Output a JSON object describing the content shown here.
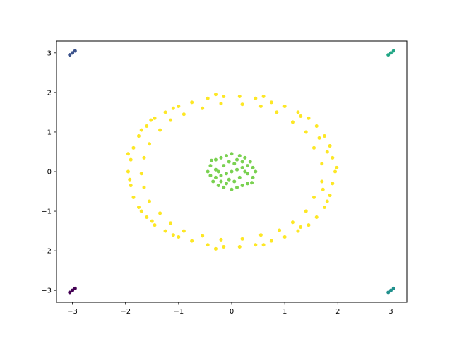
{
  "chart_data": {
    "type": "scatter",
    "title": "",
    "xlabel": "",
    "ylabel": "",
    "xlim": [
      -3.3,
      3.3
    ],
    "ylim": [
      -3.3,
      3.3
    ],
    "grid": false,
    "legend": "none",
    "x_ticks": [
      -3,
      -2,
      -1,
      0,
      1,
      2,
      3
    ],
    "y_ticks": [
      -3,
      -2,
      -1,
      0,
      1,
      2,
      3
    ],
    "x_tick_labels": [
      "−3",
      "−2",
      "−1",
      "0",
      "1",
      "2",
      "3"
    ],
    "y_tick_labels": [
      "−3",
      "−2",
      "−1",
      "0",
      "1",
      "2",
      "3"
    ],
    "series": [
      {
        "color": "#440154",
        "points": [
          [
            -3.05,
            -3.05
          ],
          [
            -3.0,
            -3.0
          ],
          [
            -2.95,
            -2.95
          ]
        ]
      },
      {
        "color": "#3b528b",
        "points": [
          [
            -3.05,
            2.95
          ],
          [
            -3.0,
            3.0
          ],
          [
            -2.95,
            3.05
          ]
        ]
      },
      {
        "color": "#21908d",
        "points": [
          [
            2.95,
            -3.05
          ],
          [
            3.0,
            -3.0
          ],
          [
            3.05,
            -2.95
          ]
        ]
      },
      {
        "color": "#21a685",
        "points": [
          [
            2.95,
            2.95
          ],
          [
            3.0,
            3.0
          ],
          [
            3.05,
            3.05
          ]
        ]
      },
      {
        "color": "#7ad151",
        "points": [
          [
            0.0,
            0.0
          ],
          [
            0.1,
            0.05
          ],
          [
            -0.1,
            -0.05
          ],
          [
            0.2,
            0.1
          ],
          [
            -0.2,
            -0.1
          ],
          [
            0.3,
            0.15
          ],
          [
            -0.3,
            -0.15
          ],
          [
            0.4,
            0.1
          ],
          [
            -0.4,
            -0.1
          ],
          [
            0.45,
            0.0
          ],
          [
            -0.45,
            0.0
          ],
          [
            0.4,
            -0.15
          ],
          [
            -0.4,
            0.15
          ],
          [
            0.3,
            -0.3
          ],
          [
            -0.3,
            0.3
          ],
          [
            0.2,
            -0.35
          ],
          [
            -0.2,
            0.35
          ],
          [
            0.1,
            -0.4
          ],
          [
            -0.1,
            0.4
          ],
          [
            0.0,
            -0.45
          ],
          [
            0.0,
            0.45
          ],
          [
            0.15,
            0.4
          ],
          [
            -0.15,
            -0.4
          ],
          [
            0.25,
            0.35
          ],
          [
            -0.25,
            -0.35
          ],
          [
            0.35,
            0.25
          ],
          [
            -0.35,
            -0.25
          ],
          [
            0.05,
            0.2
          ],
          [
            -0.05,
            -0.2
          ],
          [
            0.15,
            -0.15
          ],
          [
            -0.15,
            0.15
          ],
          [
            0.25,
            0.0
          ],
          [
            -0.25,
            0.0
          ],
          [
            0.1,
            0.3
          ],
          [
            -0.1,
            -0.3
          ],
          [
            0.3,
            -0.05
          ],
          [
            -0.3,
            0.05
          ],
          [
            0.2,
            0.25
          ],
          [
            -0.2,
            -0.25
          ],
          [
            0.38,
            -0.28
          ],
          [
            -0.38,
            0.28
          ],
          [
            0.05,
            -0.25
          ],
          [
            -0.05,
            0.25
          ]
        ]
      },
      {
        "color": "#fde725",
        "points": [
          [
            1.95,
            0.0
          ],
          [
            1.9,
            0.35
          ],
          [
            1.85,
            0.65
          ],
          [
            1.75,
            0.9
          ],
          [
            1.6,
            1.15
          ],
          [
            1.45,
            1.35
          ],
          [
            1.25,
            1.5
          ],
          [
            1.0,
            1.65
          ],
          [
            0.75,
            1.75
          ],
          [
            0.45,
            1.85
          ],
          [
            0.15,
            1.9
          ],
          [
            -0.15,
            1.9
          ],
          [
            -0.45,
            1.85
          ],
          [
            -0.75,
            1.75
          ],
          [
            -1.0,
            1.65
          ],
          [
            -1.25,
            1.5
          ],
          [
            -1.45,
            1.35
          ],
          [
            -1.6,
            1.15
          ],
          [
            -1.75,
            0.9
          ],
          [
            -1.85,
            0.6
          ],
          [
            -1.9,
            0.3
          ],
          [
            -1.95,
            0.0
          ],
          [
            -1.9,
            -0.35
          ],
          [
            -1.85,
            -0.65
          ],
          [
            -1.75,
            -0.9
          ],
          [
            -1.6,
            -1.15
          ],
          [
            -1.45,
            -1.35
          ],
          [
            -1.25,
            -1.5
          ],
          [
            -1.0,
            -1.65
          ],
          [
            -0.75,
            -1.75
          ],
          [
            -0.45,
            -1.85
          ],
          [
            -0.15,
            -1.9
          ],
          [
            0.15,
            -1.9
          ],
          [
            0.45,
            -1.85
          ],
          [
            0.75,
            -1.75
          ],
          [
            1.0,
            -1.65
          ],
          [
            1.25,
            -1.5
          ],
          [
            1.45,
            -1.35
          ],
          [
            1.6,
            -1.15
          ],
          [
            1.75,
            -0.9
          ],
          [
            1.85,
            -0.6
          ],
          [
            1.9,
            -0.3
          ],
          [
            1.7,
            0.2
          ],
          [
            1.55,
            0.6
          ],
          [
            1.4,
            1.0
          ],
          [
            1.15,
            1.25
          ],
          [
            0.85,
            1.5
          ],
          [
            0.55,
            1.65
          ],
          [
            0.2,
            1.7
          ],
          [
            -0.2,
            1.72
          ],
          [
            -0.55,
            1.6
          ],
          [
            -0.9,
            1.45
          ],
          [
            -1.15,
            1.3
          ],
          [
            -1.35,
            1.05
          ],
          [
            -1.55,
            0.7
          ],
          [
            -1.65,
            0.35
          ],
          [
            -1.7,
            -0.05
          ],
          [
            -1.65,
            -0.4
          ],
          [
            -1.55,
            -0.75
          ],
          [
            -1.35,
            -1.05
          ],
          [
            -1.15,
            -1.3
          ],
          [
            -0.9,
            -1.5
          ],
          [
            -0.55,
            -1.62
          ],
          [
            -0.2,
            -1.72
          ],
          [
            0.2,
            -1.7
          ],
          [
            0.55,
            -1.6
          ],
          [
            0.9,
            -1.48
          ],
          [
            1.15,
            -1.28
          ],
          [
            1.4,
            -1.0
          ],
          [
            1.55,
            -0.65
          ],
          [
            1.7,
            -0.25
          ],
          [
            1.8,
            0.5
          ],
          [
            1.65,
            0.85
          ],
          [
            1.3,
            1.4
          ],
          [
            0.6,
            1.9
          ],
          [
            -0.3,
            1.95
          ],
          [
            -1.1,
            1.6
          ],
          [
            -1.7,
            1.05
          ],
          [
            -1.95,
            0.45
          ],
          [
            -1.92,
            -0.2
          ],
          [
            -1.7,
            -1.0
          ],
          [
            -1.1,
            -1.6
          ],
          [
            -0.3,
            -1.95
          ],
          [
            0.6,
            -1.85
          ],
          [
            1.3,
            -1.4
          ],
          [
            1.8,
            -0.75
          ],
          [
            1.98,
            0.1
          ],
          [
            1.72,
            -0.45
          ],
          [
            -1.52,
            1.3
          ],
          [
            -1.5,
            -1.25
          ]
        ]
      }
    ]
  }
}
